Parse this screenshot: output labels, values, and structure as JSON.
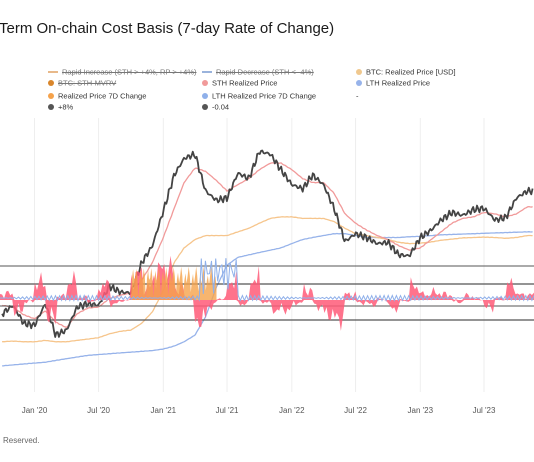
{
  "header": {
    "title": "-Term On-chain Cost Basis (7-day Rate of Change)"
  },
  "legend": [
    {
      "label": "Rapid Increase (STH > +4%, RP > +4%)",
      "color": "#e8b98a",
      "kind": "line",
      "struck": true
    },
    {
      "label": "Rapid Decrease (STH < -4%)",
      "color": "#9ab3dc",
      "kind": "line",
      "struck": true
    },
    {
      "label": "BTC: Realized Price [USD]",
      "color": "#f0c88e",
      "kind": "dot",
      "struck": false
    },
    {
      "label": "BTC: STH-MVRV",
      "color": "#d9862b",
      "kind": "dot",
      "struck": true
    },
    {
      "label": "STH Realized Price",
      "color": "#f19a9a",
      "kind": "dot",
      "struck": false
    },
    {
      "label": "LTH Realized Price",
      "color": "#97b3ea",
      "kind": "dot",
      "struck": false
    },
    {
      "label": "Realized Price 7D Change",
      "color": "#f5a24b",
      "kind": "dot",
      "struck": false
    },
    {
      "label": "LTH Realized Price 7D Change",
      "color": "#8fb0ea",
      "kind": "dot",
      "struck": false
    },
    {
      "label": "-",
      "color": "#ffffff",
      "kind": "none",
      "struck": false
    },
    {
      "label": "+8%",
      "color": "#555555",
      "kind": "dot",
      "struck": false
    },
    {
      "label": "-0.04",
      "color": "#555555",
      "kind": "dot",
      "struck": false
    }
  ],
  "footer": {
    "text": "Reserved."
  },
  "colors": {
    "btc": "#444444",
    "sth": "#f19a9a",
    "lth": "#97b3ea",
    "realized": "#f6c58c",
    "osc_pos": "#ff5a78",
    "osc_orange": "#f5a24b",
    "osc_blue": "#8fb0ea",
    "ref": "#555555"
  },
  "chart_data": {
    "type": "line",
    "x_tick_labels": [
      "Jan '20",
      "Jul '20",
      "Jan '21",
      "Jul '21",
      "Jan '22",
      "Jul '22",
      "Jan '23",
      "Jul '23"
    ],
    "x_tick_dates": [
      "2020-01-01",
      "2020-07-01",
      "2021-01-01",
      "2021-07-01",
      "2022-01-01",
      "2022-07-01",
      "2023-01-01",
      "2023-07-01"
    ],
    "x_range": [
      "2019-09-25",
      "2023-11-20"
    ],
    "price_axis": {
      "scale": "log",
      "range": [
        3200,
        90000
      ]
    },
    "dates": [
      "2019-10-01",
      "2019-11-01",
      "2019-12-01",
      "2020-01-01",
      "2020-02-01",
      "2020-03-01",
      "2020-04-01",
      "2020-05-01",
      "2020-06-01",
      "2020-07-01",
      "2020-08-01",
      "2020-09-01",
      "2020-10-01",
      "2020-11-01",
      "2020-12-01",
      "2021-01-01",
      "2021-02-01",
      "2021-03-01",
      "2021-04-01",
      "2021-05-01",
      "2021-06-01",
      "2021-07-01",
      "2021-08-01",
      "2021-09-01",
      "2021-10-01",
      "2021-11-01",
      "2021-12-01",
      "2022-01-01",
      "2022-02-01",
      "2022-03-01",
      "2022-04-01",
      "2022-05-01",
      "2022-06-01",
      "2022-07-01",
      "2022-08-01",
      "2022-09-01",
      "2022-10-01",
      "2022-11-01",
      "2022-12-01",
      "2023-01-01",
      "2023-02-01",
      "2023-03-01",
      "2023-04-01",
      "2023-05-01",
      "2023-06-01",
      "2023-07-01",
      "2023-08-01",
      "2023-09-01",
      "2023-10-01",
      "2023-11-01"
    ],
    "series": [
      {
        "name": "BTC",
        "key": "btc",
        "values": [
          8300,
          9200,
          7400,
          7200,
          9400,
          6400,
          6800,
          9000,
          9400,
          9200,
          11600,
          10800,
          10700,
          15500,
          19000,
          29000,
          45000,
          55000,
          58000,
          37000,
          33000,
          34000,
          46000,
          43000,
          60000,
          58000,
          48000,
          40000,
          38000,
          45000,
          40000,
          30000,
          20000,
          22000,
          21000,
          19500,
          19800,
          17000,
          16800,
          21000,
          23000,
          26000,
          28500,
          27500,
          29500,
          30000,
          26000,
          26800,
          34000,
          37000
        ]
      },
      {
        "name": "STH Realized Price",
        "key": "sth",
        "values": [
          9200,
          9000,
          8200,
          7800,
          8600,
          7500,
          7000,
          8300,
          8900,
          9000,
          10000,
          10400,
          10700,
          12500,
          15500,
          21000,
          30000,
          41000,
          49000,
          47000,
          42000,
          37000,
          40000,
          43000,
          48000,
          52000,
          52000,
          48000,
          43000,
          41000,
          41000,
          36000,
          28000,
          25000,
          23000,
          21500,
          20500,
          19000,
          18000,
          18500,
          20500,
          22500,
          25000,
          26500,
          27000,
          28500,
          28000,
          27000,
          28000,
          30500
        ]
      },
      {
        "name": "LTH Realized Price",
        "key": "lth",
        "values": [
          4400,
          4450,
          4500,
          4550,
          4600,
          4700,
          4800,
          4900,
          5000,
          5050,
          5100,
          5150,
          5200,
          5250,
          5300,
          5400,
          5600,
          5900,
          6400,
          8000,
          11500,
          15000,
          16500,
          17000,
          17500,
          18000,
          18500,
          19500,
          20500,
          21000,
          21500,
          22000,
          22000,
          21500,
          21000,
          21000,
          21000,
          21000,
          21200,
          21300,
          21500,
          21700,
          21800,
          21900,
          22000,
          22100,
          22200,
          22300,
          22400,
          22500
        ]
      },
      {
        "name": "Realized Price",
        "key": "realized",
        "values": [
          5900,
          5950,
          5900,
          5900,
          6000,
          5900,
          5900,
          6000,
          6100,
          6200,
          6500,
          6700,
          6800,
          7400,
          8500,
          11000,
          15500,
          18500,
          20500,
          21500,
          21500,
          21500,
          22500,
          23500,
          25000,
          26500,
          27000,
          27000,
          26500,
          26500,
          26500,
          25500,
          23500,
          22000,
          21500,
          21000,
          20500,
          19800,
          19500,
          19600,
          19900,
          20300,
          20600,
          20900,
          21000,
          21100,
          21000,
          20800,
          21000,
          21500
        ]
      }
    ],
    "oscillator": {
      "reference_lines": {
        "upper": "+8%",
        "lower": "-0.04"
      },
      "panel_labels": [
        "+8%",
        "-0.04"
      ]
    }
  }
}
